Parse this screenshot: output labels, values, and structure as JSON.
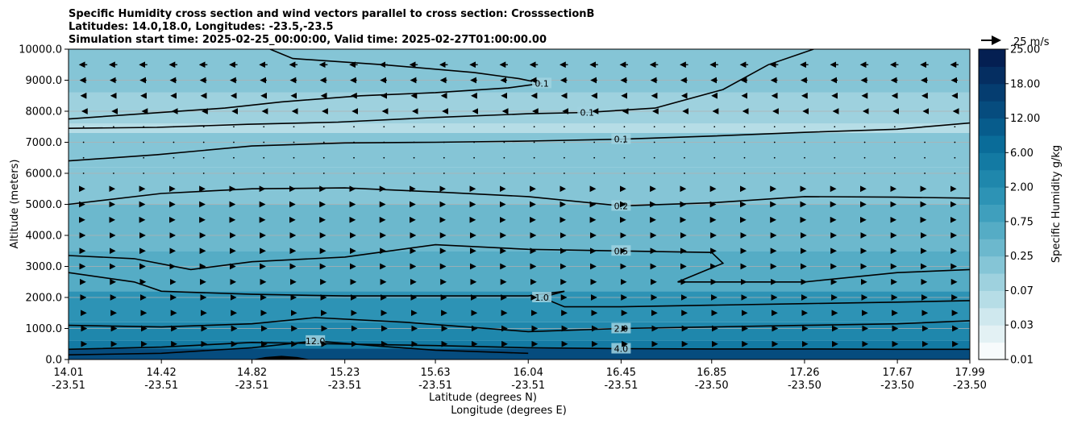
{
  "chart_data": {
    "type": "heatmap",
    "title_lines": [
      "Specific Humidity cross section and wind vectors parallel to cross section: CrosssectionB",
      "Latitudes: 14.0,18.0, Longitudes: -23.5,-23.5",
      "Simulation start time: 2025-02-25_00:00:00, Valid time: 2025-02-27T01:00:00.00"
    ],
    "ylabel": "Altitude (meters)",
    "xlabel_lat": "Latitude (degrees N)",
    "xlabel_lon": "Longitude (degrees E)",
    "ylim": [
      0,
      10000
    ],
    "y_ticks": [
      {
        "value": 0,
        "label": "0.0"
      },
      {
        "value": 1000,
        "label": "1000.0"
      },
      {
        "value": 2000,
        "label": "2000.0"
      },
      {
        "value": 3000,
        "label": "3000.0"
      },
      {
        "value": 4000,
        "label": "4000.0"
      },
      {
        "value": 5000,
        "label": "5000.0"
      },
      {
        "value": 6000,
        "label": "6000.0"
      },
      {
        "value": 7000,
        "label": "7000.0"
      },
      {
        "value": 8000,
        "label": "8000.0"
      },
      {
        "value": 9000,
        "label": "9000.0"
      },
      {
        "value": 10000,
        "label": "10000.0"
      }
    ],
    "xlim": [
      14.01,
      17.99
    ],
    "x_ticks": [
      {
        "value": 14.01,
        "lat": "14.01",
        "lon": "-23.51"
      },
      {
        "value": 14.42,
        "lat": "14.42",
        "lon": "-23.51"
      },
      {
        "value": 14.82,
        "lat": "14.82",
        "lon": "-23.51"
      },
      {
        "value": 15.23,
        "lat": "15.23",
        "lon": "-23.51"
      },
      {
        "value": 15.63,
        "lat": "15.63",
        "lon": "-23.51"
      },
      {
        "value": 16.04,
        "lat": "16.04",
        "lon": "-23.51"
      },
      {
        "value": 16.45,
        "lat": "16.45",
        "lon": "-23.51"
      },
      {
        "value": 16.85,
        "lat": "16.85",
        "lon": "-23.50"
      },
      {
        "value": 17.26,
        "lat": "17.26",
        "lon": "-23.50"
      },
      {
        "value": 17.67,
        "lat": "17.67",
        "lon": "-23.50"
      },
      {
        "value": 17.99,
        "lat": "17.99",
        "lon": "-23.50"
      }
    ],
    "grid": "horizontal",
    "colorbar": {
      "label": "Specific Humidity g/kg",
      "levels": [
        0.01,
        0.02,
        0.03,
        0.05,
        0.07,
        0.1,
        0.25,
        0.5,
        0.75,
        1.0,
        2.0,
        4.0,
        6.0,
        9.0,
        12.0,
        15.0,
        18.0,
        21.0,
        25.0
      ],
      "tick_labels": [
        "0.01",
        "0.03",
        "0.07",
        "0.25",
        "0.75",
        "2.00",
        "6.00",
        "12.00",
        "18.00",
        "25.00"
      ],
      "tick_level_index": [
        0,
        2,
        4,
        6,
        8,
        10,
        12,
        14,
        16,
        18
      ],
      "colors": [
        "#f7fbfc",
        "#e3f1f4",
        "#cfe8ee",
        "#b6dde6",
        "#9ed1de",
        "#85c5d6",
        "#6cb8cd",
        "#55acc5",
        "#3f9fbd",
        "#2d93b5",
        "#1f87ac",
        "#137aa3",
        "#0a6c99",
        "#075c8c",
        "#064c7e",
        "#053d70",
        "#052e61",
        "#041f52",
        "#031444"
      ]
    },
    "filled_bands": [
      {
        "z_top": 10000,
        "z_bottom": 8600,
        "value": 0.1
      },
      {
        "z_top": 8600,
        "z_bottom": 7600,
        "value": 0.07
      },
      {
        "z_top": 7600,
        "z_bottom": 7300,
        "value": 0.05
      },
      {
        "z_top": 7300,
        "z_bottom": 6200,
        "value": 0.1
      },
      {
        "z_top": 6200,
        "z_bottom": 5000,
        "value": 0.15
      },
      {
        "z_top": 5000,
        "z_bottom": 3500,
        "value": 0.3
      },
      {
        "z_top": 3500,
        "z_bottom": 2200,
        "value": 0.5
      },
      {
        "z_top": 2200,
        "z_bottom": 1200,
        "value": 1.0
      },
      {
        "z_top": 1200,
        "z_bottom": 600,
        "value": 2.0
      },
      {
        "z_top": 600,
        "z_bottom": 350,
        "value": 4.0
      },
      {
        "z_top": 350,
        "z_bottom": 0,
        "value": 12.0
      }
    ],
    "contours": [
      {
        "label": "0.1",
        "points": [
          [
            14.01,
            7750
          ],
          [
            14.3,
            7900
          ],
          [
            14.7,
            8100
          ],
          [
            14.95,
            8300
          ],
          [
            15.3,
            8500
          ],
          [
            15.63,
            8600
          ],
          [
            15.95,
            8750
          ],
          [
            16.1,
            8900
          ],
          [
            16.0,
            9050
          ],
          [
            15.8,
            9250
          ],
          [
            15.4,
            9500
          ],
          [
            15.0,
            9700
          ],
          [
            14.9,
            10000
          ]
        ]
      },
      {
        "label": "0.1",
        "points": [
          [
            14.01,
            7450
          ],
          [
            14.4,
            7480
          ],
          [
            14.8,
            7580
          ],
          [
            15.2,
            7650
          ],
          [
            15.63,
            7800
          ],
          [
            16.04,
            7920
          ],
          [
            16.3,
            7960
          ],
          [
            16.6,
            8100
          ],
          [
            16.9,
            8700
          ],
          [
            17.1,
            9500
          ],
          [
            17.3,
            10000
          ]
        ]
      },
      {
        "label": "0.1",
        "points": [
          [
            14.01,
            6400
          ],
          [
            14.4,
            6600
          ],
          [
            14.82,
            6880
          ],
          [
            15.23,
            6980
          ],
          [
            15.63,
            7000
          ],
          [
            16.04,
            7040
          ],
          [
            16.45,
            7100
          ],
          [
            16.85,
            7200
          ],
          [
            17.26,
            7320
          ],
          [
            17.67,
            7420
          ],
          [
            17.99,
            7620
          ]
        ]
      },
      {
        "label": "0.2",
        "points": [
          [
            14.01,
            5000
          ],
          [
            14.42,
            5350
          ],
          [
            14.82,
            5500
          ],
          [
            15.23,
            5530
          ],
          [
            15.63,
            5400
          ],
          [
            16.04,
            5250
          ],
          [
            16.45,
            4950
          ],
          [
            16.85,
            5050
          ],
          [
            17.26,
            5250
          ],
          [
            17.67,
            5230
          ],
          [
            17.99,
            5200
          ]
        ]
      },
      {
        "label": "0.5",
        "points": [
          [
            14.01,
            3350
          ],
          [
            14.3,
            3250
          ],
          [
            14.55,
            2900
          ],
          [
            14.82,
            3150
          ],
          [
            15.23,
            3300
          ],
          [
            15.63,
            3700
          ],
          [
            16.04,
            3550
          ],
          [
            16.45,
            3500
          ],
          [
            16.85,
            3450
          ],
          [
            16.9,
            3100
          ],
          [
            16.7,
            2500
          ],
          [
            17.26,
            2500
          ],
          [
            17.67,
            2800
          ],
          [
            17.99,
            2900
          ]
        ]
      },
      {
        "label": "1.0",
        "points": [
          [
            14.01,
            2800
          ],
          [
            14.3,
            2500
          ],
          [
            14.42,
            2200
          ],
          [
            14.82,
            2100
          ],
          [
            15.23,
            2050
          ],
          [
            15.63,
            2050
          ],
          [
            16.04,
            2050
          ],
          [
            16.2,
            2200
          ],
          [
            16.1,
            2000
          ],
          [
            16.2,
            1700
          ],
          [
            16.45,
            1700
          ],
          [
            16.85,
            1750
          ],
          [
            17.26,
            1800
          ],
          [
            17.67,
            1850
          ],
          [
            17.99,
            1900
          ]
        ]
      },
      {
        "label": "2.0",
        "points": [
          [
            14.01,
            1100
          ],
          [
            14.42,
            1050
          ],
          [
            14.82,
            1150
          ],
          [
            15.1,
            1350
          ],
          [
            15.5,
            1200
          ],
          [
            16.04,
            900
          ],
          [
            16.45,
            1000
          ],
          [
            16.85,
            1050
          ],
          [
            17.26,
            1100
          ],
          [
            17.67,
            1150
          ],
          [
            17.99,
            1250
          ]
        ]
      },
      {
        "label": "4.0",
        "points": [
          [
            14.01,
            330
          ],
          [
            14.42,
            400
          ],
          [
            14.82,
            550
          ],
          [
            15.23,
            500
          ],
          [
            15.63,
            450
          ],
          [
            16.04,
            380
          ],
          [
            16.45,
            350
          ],
          [
            16.85,
            340
          ],
          [
            17.26,
            340
          ],
          [
            17.67,
            330
          ],
          [
            17.99,
            330
          ]
        ]
      },
      {
        "label": "12.0",
        "points": [
          [
            14.01,
            150
          ],
          [
            14.42,
            200
          ],
          [
            14.82,
            380
          ],
          [
            15.1,
            600
          ],
          [
            15.4,
            420
          ],
          [
            15.63,
            300
          ],
          [
            16.04,
            200
          ]
        ]
      }
    ],
    "terrain": [
      [
        14.82,
        0
      ],
      [
        14.88,
        80
      ],
      [
        14.95,
        120
      ],
      [
        15.02,
        80
      ],
      [
        15.08,
        0
      ]
    ],
    "wind_vectors_ms": [
      {
        "z": 9500,
        "u": -10
      },
      {
        "z": 9000,
        "u": -8
      },
      {
        "z": 8500,
        "u": -6
      },
      {
        "z": 8000,
        "u": -3
      },
      {
        "z": 7500,
        "u": -1
      },
      {
        "z": 7000,
        "u": 0
      },
      {
        "z": 6500,
        "u": 0
      },
      {
        "z": 6000,
        "u": 1
      },
      {
        "z": 5500,
        "u": 2
      },
      {
        "z": 5000,
        "u": 2
      },
      {
        "z": 4500,
        "u": 2
      },
      {
        "z": 4000,
        "u": 3
      },
      {
        "z": 3500,
        "u": 3
      },
      {
        "z": 3000,
        "u": 3
      },
      {
        "z": 2500,
        "u": 4
      },
      {
        "z": 2000,
        "u": 5
      },
      {
        "z": 1500,
        "u": 6
      },
      {
        "z": 1000,
        "u": 7
      },
      {
        "z": 500,
        "u": 7
      }
    ],
    "quiver_key": {
      "label": "25 m/s",
      "value": 25
    }
  }
}
